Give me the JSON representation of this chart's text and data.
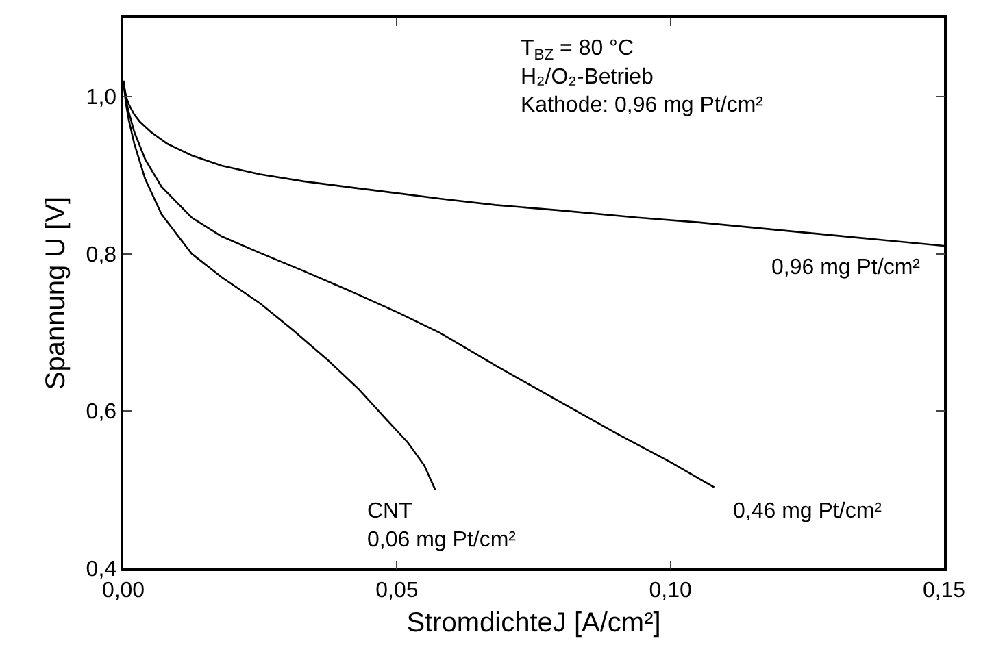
{
  "chart_data": {
    "type": "line",
    "xlabel": "StromdichteJ [A/cm²]",
    "ylabel": "Spannung U [V]",
    "xlim": [
      0,
      0.15
    ],
    "ylim": [
      0.4,
      1.1
    ],
    "xticks": [
      {
        "value": 0,
        "label": "0,00"
      },
      {
        "value": 0.05,
        "label": "0,05"
      },
      {
        "value": 0.1,
        "label": "0,10"
      },
      {
        "value": 0.15,
        "label": "0,15"
      }
    ],
    "yticks": [
      {
        "value": 0.4,
        "label": "0,4"
      },
      {
        "value": 0.6,
        "label": "0,6"
      },
      {
        "value": 0.8,
        "label": "0,8"
      },
      {
        "value": 1.0,
        "label": "1,0"
      }
    ],
    "marker": "none",
    "line_style": "solid",
    "series": [
      {
        "color": "#000000",
        "x": [
          0,
          0.0005,
          0.001,
          0.002,
          0.003,
          0.005,
          0.008,
          0.0125,
          0.018,
          0.025,
          0.033,
          0.042,
          0.05,
          0.058,
          0.068,
          0.08,
          0.094,
          0.105,
          0.12,
          0.135,
          0.15
        ],
        "values": [
          1.02,
          1.0,
          0.99,
          0.977,
          0.968,
          0.955,
          0.94,
          0.925,
          0.912,
          0.901,
          0.892,
          0.884,
          0.877,
          0.87,
          0.862,
          0.855,
          0.846,
          0.84,
          0.83,
          0.82,
          0.81
        ]
      },
      {
        "color": "#000000",
        "x": [
          0,
          0.0005,
          0.001,
          0.002,
          0.004,
          0.007,
          0.0125,
          0.018,
          0.025,
          0.033,
          0.042,
          0.05,
          0.058,
          0.068,
          0.08,
          0.09,
          0.1,
          0.108
        ],
        "values": [
          1.02,
          0.995,
          0.98,
          0.955,
          0.92,
          0.885,
          0.846,
          0.822,
          0.801,
          0.778,
          0.751,
          0.726,
          0.699,
          0.658,
          0.611,
          0.572,
          0.535,
          0.503
        ]
      },
      {
        "color": "#000000",
        "x": [
          0,
          0.0005,
          0.001,
          0.002,
          0.004,
          0.007,
          0.0125,
          0.018,
          0.025,
          0.031,
          0.0375,
          0.043,
          0.048,
          0.052,
          0.055,
          0.057
        ],
        "values": [
          1.02,
          0.99,
          0.97,
          0.94,
          0.895,
          0.85,
          0.8,
          0.77,
          0.737,
          0.703,
          0.664,
          0.628,
          0.59,
          0.56,
          0.531,
          0.5
        ]
      }
    ],
    "annotations": [
      "T$_{BZ}$ = 80 °C\nH₂/O₂-Betrieb\nKathode: 0,96 mg Pt/cm²",
      "0,96 mg Pt/cm²",
      "0,46 mg Pt/cm²",
      "CNT\n0,06 mg Pt/cm²"
    ]
  }
}
